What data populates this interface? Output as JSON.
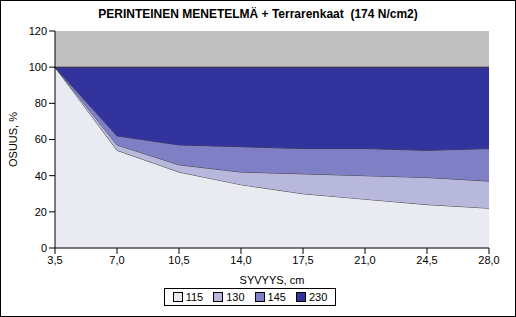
{
  "chart_data": {
    "type": "area",
    "stacked": true,
    "title": "PERINTEINEN MENETELMÄ + Terrarenkaat  (174 N/cm2)",
    "x_label": "SYVYYS, cm",
    "y_label": "OSUUS, %",
    "categories": [
      "3,5",
      "7,0",
      "10,5",
      "14,0",
      "17,5",
      "21,0",
      "24,5",
      "28,0"
    ],
    "series": [
      {
        "name": "115",
        "color": "#eaeaf2",
        "values": [
          100,
          54,
          42,
          35,
          30,
          27,
          24,
          22
        ]
      },
      {
        "name": "130",
        "color": "#b8b8dc",
        "values": [
          0,
          3,
          4,
          7,
          11,
          13,
          15,
          15
        ]
      },
      {
        "name": "145",
        "color": "#7f7fc6",
        "values": [
          0,
          5,
          11,
          14,
          14,
          15,
          15,
          18
        ]
      },
      {
        "name": "230",
        "color": "#33339e",
        "values": [
          0,
          38,
          43,
          44,
          45,
          45,
          46,
          45
        ]
      }
    ],
    "ylim": [
      0,
      120
    ],
    "yticks": [
      0,
      20,
      40,
      60,
      80,
      100,
      120
    ],
    "legend": "bottom"
  }
}
